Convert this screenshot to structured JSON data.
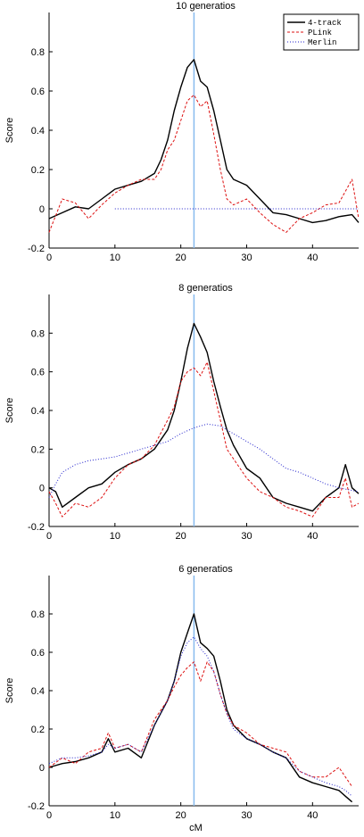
{
  "chart_data": [
    {
      "type": "line",
      "title": "10 generatios",
      "ylabel": "Score",
      "xlabel": "",
      "xlim": [
        0,
        47
      ],
      "ylim": [
        -0.2,
        1.0
      ],
      "xticks": [
        "0",
        "10",
        "20",
        "30",
        "40"
      ],
      "yticks": [
        "-0.2",
        "0",
        "0.2",
        "0.4",
        "0.6",
        "0.8"
      ],
      "grid": false,
      "vline_x": 22,
      "legend": {
        "position": "top-right",
        "entries": [
          "4-track",
          "PLink",
          "Merlin"
        ]
      },
      "series": [
        {
          "name": "4-track",
          "x": [
            0,
            2,
            4,
            6,
            8,
            10,
            12,
            14,
            16,
            17,
            18,
            19,
            20,
            21,
            22,
            23,
            24,
            25,
            26,
            27,
            28,
            30,
            32,
            34,
            36,
            38,
            40,
            42,
            44,
            46,
            47
          ],
          "y": [
            -0.05,
            -0.02,
            0.01,
            0.0,
            0.05,
            0.1,
            0.12,
            0.14,
            0.18,
            0.25,
            0.35,
            0.5,
            0.62,
            0.72,
            0.76,
            0.65,
            0.62,
            0.5,
            0.35,
            0.2,
            0.15,
            0.12,
            0.05,
            -0.02,
            -0.03,
            -0.05,
            -0.07,
            -0.06,
            -0.04,
            -0.03,
            -0.07
          ]
        },
        {
          "name": "PLink",
          "x": [
            0,
            2,
            4,
            6,
            8,
            10,
            12,
            14,
            16,
            17,
            18,
            19,
            20,
            21,
            22,
            23,
            24,
            25,
            26,
            27,
            28,
            30,
            32,
            34,
            36,
            38,
            40,
            42,
            44,
            46,
            47
          ],
          "y": [
            -0.12,
            0.05,
            0.03,
            -0.05,
            0.02,
            0.08,
            0.12,
            0.15,
            0.15,
            0.2,
            0.3,
            0.35,
            0.45,
            0.55,
            0.58,
            0.52,
            0.55,
            0.38,
            0.2,
            0.05,
            0.02,
            0.05,
            -0.02,
            -0.08,
            -0.12,
            -0.05,
            -0.02,
            0.02,
            0.03,
            0.15,
            -0.05
          ]
        },
        {
          "name": "Merlin",
          "x": [
            10,
            47
          ],
          "y": [
            0.0,
            0.0
          ]
        }
      ]
    },
    {
      "type": "line",
      "title": "8 generatios",
      "ylabel": "Score",
      "xlabel": "",
      "xlim": [
        0,
        47
      ],
      "ylim": [
        -0.2,
        1.0
      ],
      "xticks": [
        "0",
        "10",
        "20",
        "30",
        "40"
      ],
      "yticks": [
        "-0.2",
        "0",
        "0.2",
        "0.4",
        "0.6",
        "0.8"
      ],
      "grid": false,
      "vline_x": 22,
      "series": [
        {
          "name": "4-track",
          "x": [
            0,
            1,
            2,
            4,
            6,
            8,
            10,
            12,
            14,
            16,
            18,
            19,
            20,
            21,
            22,
            23,
            24,
            25,
            26,
            27,
            28,
            30,
            32,
            34,
            36,
            38,
            40,
            42,
            44,
            45,
            46,
            47
          ],
          "y": [
            0.0,
            -0.02,
            -0.1,
            -0.05,
            0.0,
            0.02,
            0.08,
            0.12,
            0.15,
            0.2,
            0.3,
            0.4,
            0.55,
            0.72,
            0.85,
            0.78,
            0.7,
            0.55,
            0.42,
            0.3,
            0.22,
            0.1,
            0.05,
            -0.05,
            -0.08,
            -0.1,
            -0.12,
            -0.05,
            0.0,
            0.12,
            0.0,
            -0.03
          ]
        },
        {
          "name": "PLink",
          "x": [
            0,
            1,
            2,
            4,
            6,
            8,
            10,
            12,
            14,
            16,
            18,
            19,
            20,
            21,
            22,
            23,
            24,
            25,
            26,
            27,
            28,
            30,
            32,
            34,
            36,
            38,
            40,
            42,
            44,
            45,
            46,
            47
          ],
          "y": [
            -0.02,
            -0.08,
            -0.15,
            -0.08,
            -0.1,
            -0.05,
            0.05,
            0.12,
            0.15,
            0.22,
            0.35,
            0.42,
            0.55,
            0.6,
            0.62,
            0.58,
            0.65,
            0.5,
            0.35,
            0.2,
            0.15,
            0.05,
            -0.02,
            -0.05,
            -0.1,
            -0.12,
            -0.15,
            -0.05,
            -0.05,
            0.05,
            -0.1,
            -0.08
          ]
        },
        {
          "name": "Merlin",
          "x": [
            0,
            1,
            2,
            4,
            6,
            8,
            10,
            12,
            14,
            16,
            18,
            20,
            22,
            24,
            26,
            28,
            30,
            32,
            34,
            36,
            38,
            40,
            42,
            44,
            47
          ],
          "y": [
            -0.05,
            0.02,
            0.08,
            0.12,
            0.14,
            0.15,
            0.16,
            0.18,
            0.2,
            0.22,
            0.24,
            0.28,
            0.31,
            0.33,
            0.32,
            0.28,
            0.24,
            0.2,
            0.15,
            0.1,
            0.08,
            0.05,
            0.02,
            0.0,
            -0.02
          ]
        }
      ]
    },
    {
      "type": "line",
      "title": "6 generatios",
      "ylabel": "Score",
      "xlabel": "cM",
      "xlim": [
        0,
        47
      ],
      "ylim": [
        -0.2,
        1.0
      ],
      "xticks": [
        "0",
        "10",
        "20",
        "30",
        "40"
      ],
      "yticks": [
        "-0.2",
        "0",
        "0.2",
        "0.4",
        "0.6",
        "0.8"
      ],
      "grid": false,
      "vline_x": 22,
      "series": [
        {
          "name": "4-track",
          "x": [
            0,
            2,
            4,
            6,
            8,
            9,
            10,
            12,
            14,
            16,
            18,
            19,
            20,
            21,
            22,
            23,
            24,
            25,
            26,
            27,
            28,
            30,
            32,
            34,
            36,
            38,
            40,
            42,
            44,
            45,
            46
          ],
          "y": [
            0.0,
            0.02,
            0.03,
            0.05,
            0.08,
            0.15,
            0.08,
            0.1,
            0.05,
            0.22,
            0.35,
            0.45,
            0.6,
            0.7,
            0.8,
            0.65,
            0.62,
            0.58,
            0.45,
            0.3,
            0.22,
            0.15,
            0.12,
            0.08,
            0.05,
            -0.05,
            -0.08,
            -0.1,
            -0.12,
            -0.15,
            -0.18
          ]
        },
        {
          "name": "PLink",
          "x": [
            0,
            2,
            4,
            6,
            8,
            9,
            10,
            12,
            14,
            16,
            18,
            19,
            20,
            21,
            22,
            23,
            24,
            25,
            26,
            27,
            28,
            30,
            32,
            34,
            36,
            38,
            40,
            42,
            44,
            45,
            46
          ],
          "y": [
            0.0,
            0.05,
            0.02,
            0.08,
            0.1,
            0.18,
            0.1,
            0.12,
            0.08,
            0.25,
            0.35,
            0.42,
            0.48,
            0.52,
            0.55,
            0.45,
            0.55,
            0.5,
            0.38,
            0.28,
            0.22,
            0.18,
            0.12,
            0.1,
            0.08,
            -0.02,
            -0.05,
            -0.05,
            0.0,
            -0.05,
            -0.1
          ]
        },
        {
          "name": "Merlin",
          "x": [
            0,
            2,
            4,
            6,
            8,
            9,
            10,
            12,
            14,
            16,
            18,
            19,
            20,
            21,
            22,
            23,
            24,
            25,
            26,
            27,
            28,
            30,
            32,
            34,
            36,
            38,
            40,
            42,
            44,
            45,
            46
          ],
          "y": [
            0.02,
            0.05,
            0.05,
            0.06,
            0.08,
            0.12,
            0.1,
            0.12,
            0.08,
            0.22,
            0.35,
            0.45,
            0.58,
            0.65,
            0.68,
            0.62,
            0.58,
            0.5,
            0.38,
            0.28,
            0.2,
            0.15,
            0.12,
            0.08,
            0.05,
            -0.02,
            -0.05,
            -0.08,
            -0.1,
            -0.12,
            -0.15
          ]
        }
      ]
    }
  ],
  "colors": {
    "4-track": "#000000",
    "PLink": "#dd1111",
    "Merlin": "#2222cc",
    "vline": "#88bbee"
  }
}
